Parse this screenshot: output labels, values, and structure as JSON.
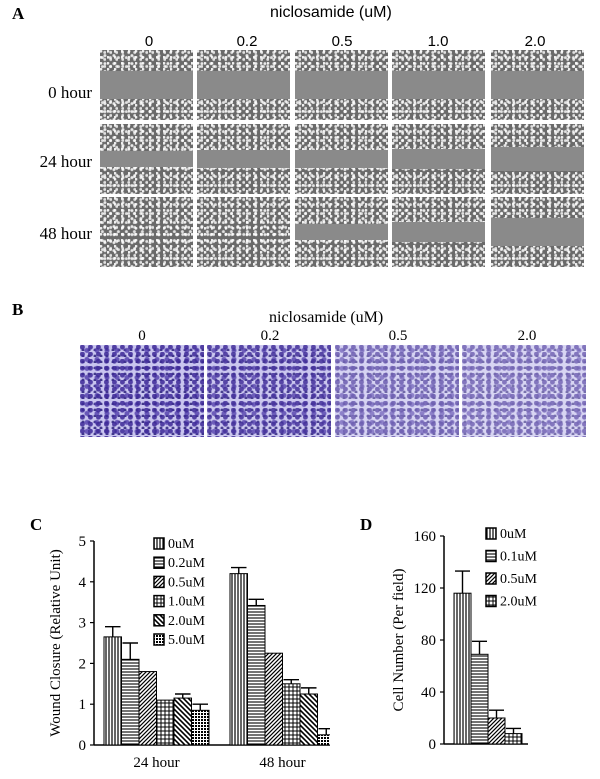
{
  "panel_a": {
    "letter": "A",
    "title": "niclosamide (uM)",
    "columns": [
      "0",
      "0.2",
      "0.5",
      "1.0",
      "2.0"
    ],
    "rows": [
      "0 hour",
      "24 hour",
      "48 hour"
    ]
  },
  "panel_b": {
    "letter": "B",
    "title": "niclosamide (uM)",
    "columns": [
      "0",
      "0.2",
      "0.5",
      "2.0"
    ]
  },
  "chart_data": [
    {
      "panel": "C",
      "type": "bar",
      "ylabel": "Wound Closure (Relative Unit)",
      "ylim": [
        0,
        5
      ],
      "yticks": [
        "0",
        "1",
        "2",
        "3",
        "4",
        "5"
      ],
      "categories": [
        "24 hour",
        "48 hour"
      ],
      "series": [
        {
          "name": "0uM",
          "values": [
            2.65,
            4.2
          ],
          "errors": [
            0.25,
            0.15
          ],
          "pattern": "vertical"
        },
        {
          "name": "0.2uM",
          "values": [
            2.1,
            3.42
          ],
          "errors": [
            0.4,
            0.15
          ],
          "pattern": "horizontal"
        },
        {
          "name": "0.5uM",
          "values": [
            1.8,
            2.25
          ],
          "errors": [
            0.0,
            0.0
          ],
          "pattern": "diag"
        },
        {
          "name": "1.0uM",
          "values": [
            1.1,
            1.5
          ],
          "errors": [
            0.0,
            0.1
          ],
          "pattern": "grid"
        },
        {
          "name": "2.0uM",
          "values": [
            1.15,
            1.25
          ],
          "errors": [
            0.1,
            0.15
          ],
          "pattern": "diag2"
        },
        {
          "name": "5.0uM",
          "values": [
            0.85,
            0.25
          ],
          "errors": [
            0.15,
            0.15
          ],
          "pattern": "dense"
        }
      ]
    },
    {
      "panel": "D",
      "type": "bar",
      "ylabel": "Cell Number (Per field)",
      "ylim": [
        0,
        160
      ],
      "yticks": [
        "0",
        "40",
        "80",
        "120",
        "160"
      ],
      "categories": [
        ""
      ],
      "series": [
        {
          "name": "0uM",
          "values": [
            116
          ],
          "errors": [
            17
          ],
          "pattern": "vertical"
        },
        {
          "name": "0.1uM",
          "values": [
            69
          ],
          "errors": [
            10
          ],
          "pattern": "horizontal"
        },
        {
          "name": "0.5uM",
          "values": [
            20
          ],
          "errors": [
            6
          ],
          "pattern": "diag"
        },
        {
          "name": "2.0uM",
          "values": [
            8
          ],
          "errors": [
            4
          ],
          "pattern": "grid"
        }
      ]
    }
  ]
}
